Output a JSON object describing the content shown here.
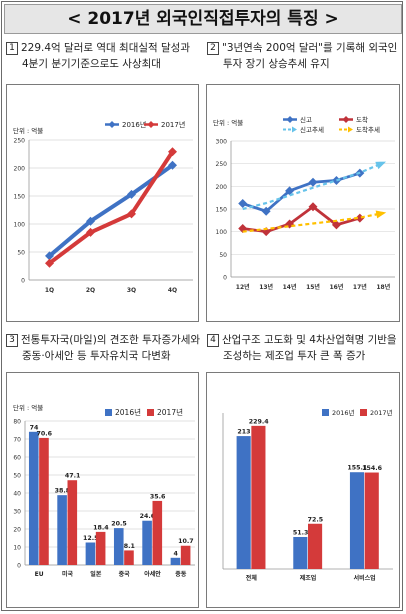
{
  "page": {
    "title": "< 2017년 외국인직접투자의 특징 >"
  },
  "sections": [
    {
      "num": "1",
      "line1": "229.4억 달러로 역대 최대실적 달성과",
      "line2": "4분기 분기기준으로도 사상최대"
    },
    {
      "num": "2",
      "line1": "\"3년연속 200억 달러\"를 기록해 외국인",
      "line2": "투자 장기 상승추세 유지"
    },
    {
      "num": "3",
      "line1": "전통투자국(마일)의 견조한 투자증가세와",
      "line2": "중동·아세안 등 투자유치국 다변화"
    },
    {
      "num": "4",
      "line1": "산업구조 고도화 및 4차산업혁명 기반을",
      "line2": "조성하는 제조업 투자 큰 폭 증가"
    }
  ],
  "chart_data": [
    {
      "type": "line",
      "unit": "단위 : 억불",
      "categories": [
        "1Q",
        "2Q",
        "3Q",
        "4Q"
      ],
      "ylim": [
        0,
        250
      ],
      "yticks": [
        0,
        50,
        100,
        150,
        200,
        250
      ],
      "series": [
        {
          "name": "2016년",
          "color": "#3f72c4",
          "values": [
            43,
            105,
            153,
            205
          ]
        },
        {
          "name": "2017년",
          "color": "#d43a3a",
          "values": [
            30,
            85,
            118,
            229
          ]
        }
      ],
      "legend": "top-right"
    },
    {
      "type": "line",
      "unit": "단위 : 억불",
      "categories": [
        "12년",
        "13년",
        "14년",
        "15년",
        "16년",
        "17년",
        "18년"
      ],
      "ylim": [
        0,
        300
      ],
      "yticks": [
        0,
        50,
        100,
        150,
        200,
        250,
        300
      ],
      "series": [
        {
          "name": "신고",
          "color": "#3f72c4",
          "values": [
            162,
            145,
            190,
            209,
            213,
            229,
            null
          ]
        },
        {
          "name": "신고추세",
          "color": "#67c3ea",
          "dashed": true,
          "values": [
            150,
            163,
            180,
            197,
            213,
            230,
            252
          ]
        },
        {
          "name": "도착",
          "color": "#c0333a",
          "values": [
            107,
            100,
            117,
            155,
            115,
            130,
            null
          ]
        },
        {
          "name": "도착추세",
          "color": "#ffc000",
          "dashed": true,
          "values": [
            100,
            106,
            112,
            118,
            124,
            131,
            141
          ]
        }
      ],
      "legend": "top"
    },
    {
      "type": "bar",
      "unit": "단위 : 억불",
      "categories": [
        "EU",
        "미국",
        "일본",
        "중국",
        "아세안",
        "중동"
      ],
      "ylim": [
        0,
        80
      ],
      "yticks": [
        0,
        10,
        20,
        30,
        40,
        50,
        60,
        70,
        80
      ],
      "series": [
        {
          "name": "2016년",
          "color": "#3f72c4",
          "values": [
            74,
            38.8,
            12.5,
            20.5,
            24.6,
            4
          ]
        },
        {
          "name": "2017년",
          "color": "#d43a3a",
          "values": [
            70.6,
            47.1,
            18.4,
            8.1,
            35.6,
            10.7
          ]
        }
      ],
      "legend": "top-right"
    },
    {
      "type": "bar",
      "unit": "",
      "categories": [
        "전체",
        "제조업",
        "서비스업"
      ],
      "ylim": [
        0,
        250
      ],
      "yticks": [],
      "series": [
        {
          "name": "2016년",
          "color": "#3f72c4",
          "values": [
            213,
            51.3,
            155.1
          ]
        },
        {
          "name": "2017년",
          "color": "#d43a3a",
          "values": [
            229.4,
            72.5,
            154.6
          ]
        }
      ],
      "legend": "top-right"
    }
  ]
}
